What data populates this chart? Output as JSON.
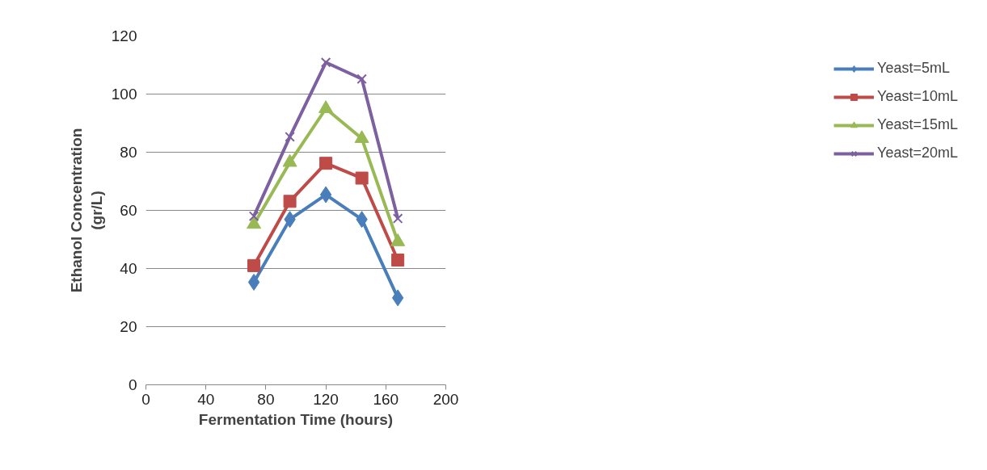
{
  "chart_data": {
    "type": "line",
    "xlabel": "Fermentation Time (hours)",
    "ylabel": "Ethanol Concentration\n(gr/L)",
    "x": [
      72,
      96,
      120,
      144,
      168
    ],
    "series": [
      {
        "name": "Yeast=5mL",
        "color": "#4a7ebb",
        "marker": "diamond",
        "values": [
          35.3,
          56.9,
          65.4,
          56.9,
          29.9
        ]
      },
      {
        "name": "Yeast=10mL",
        "color": "#be4b48",
        "marker": "square",
        "values": [
          41,
          63.1,
          76.2,
          71.1,
          42.9
        ]
      },
      {
        "name": "Yeast=15mL",
        "color": "#98b954",
        "marker": "triangle",
        "values": [
          55.2,
          76.5,
          95,
          84.7,
          49.2
        ]
      },
      {
        "name": "Yeast=20mL",
        "color": "#7d60a0",
        "marker": "cross",
        "values": [
          58,
          85.3,
          110.9,
          105.2,
          57.2
        ]
      }
    ],
    "xlim": [
      0,
      200
    ],
    "xticks": [
      0,
      40,
      80,
      120,
      160,
      200
    ],
    "ylim": [
      0,
      120
    ],
    "yticks": [
      0,
      20,
      40,
      60,
      80,
      100,
      120
    ],
    "grid": "y",
    "legend": "right",
    "line_style": "solid"
  }
}
